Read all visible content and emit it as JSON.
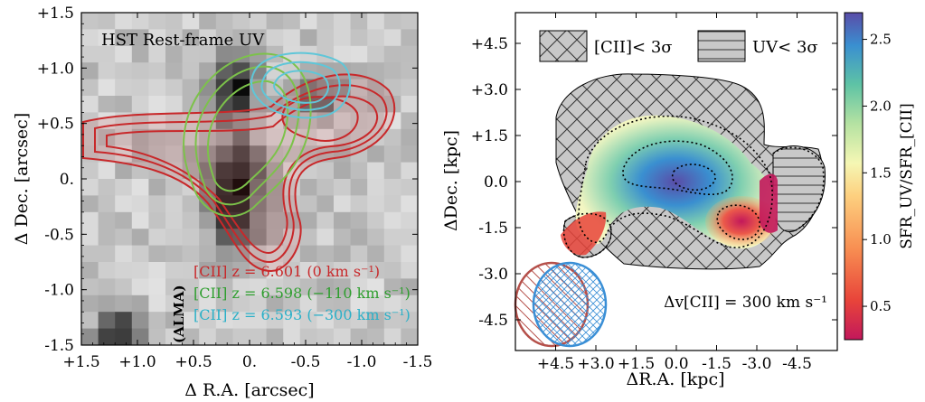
{
  "chart_data": [
    {
      "type": "heatmap",
      "title": "HST Rest-frame UV",
      "xlabel": "Δ R.A. [arcsec]",
      "ylabel": "Δ Dec. [arcsec]",
      "xlim": [
        1.5,
        -1.5
      ],
      "ylim": [
        -1.5,
        1.5
      ],
      "x_ticks": [
        "+1.5",
        "+1.0",
        "+0.5",
        "0.",
        "-0.5",
        "-1.0",
        "-1.5"
      ],
      "x_tick_values": [
        1.5,
        1.0,
        0.5,
        0.0,
        -0.5,
        -1.0,
        -1.5
      ],
      "y_ticks": [
        "-1.5",
        "-1.0",
        "-0.5",
        "0.",
        "+0.5",
        "+1.0",
        "+1.5"
      ],
      "y_tick_values": [
        -1.5,
        -1.0,
        -0.5,
        0.0,
        0.5,
        1.0,
        1.5
      ],
      "inset_label": "(ALMA)",
      "legend": [
        {
          "label": "[CII] z = 6.601 (0 km s⁻¹)",
          "color": "#c8282a"
        },
        {
          "label": "[CII] z = 6.598 (−110 km s⁻¹)",
          "color": "#2e9e2e"
        },
        {
          "label": "[CII] z = 6.593 (−300 km s⁻¹)",
          "color": "#2ab0c8"
        }
      ],
      "contour_series": [
        {
          "color": "#c8282a",
          "center": [
            0.0,
            0.25
          ],
          "levels": 4
        },
        {
          "color": "#7cc24a",
          "center": [
            -0.1,
            0.35
          ],
          "levels": 3
        },
        {
          "color": "#5fc6d8",
          "center": [
            -0.65,
            0.85
          ],
          "levels": 3
        }
      ]
    },
    {
      "type": "heatmap",
      "xlabel": "ΔR.A. [kpc]",
      "ylabel": "ΔDec. [kpc]",
      "xlim": [
        6.0,
        -6.0
      ],
      "ylim": [
        -5.5,
        5.5
      ],
      "x_ticks": [
        "+4.5",
        "+3.0",
        "+1.5",
        "0.0",
        "-1.5",
        "-3.0",
        "-4.5"
      ],
      "x_tick_values": [
        4.5,
        3.0,
        1.5,
        0.0,
        -1.5,
        -3.0,
        -4.5
      ],
      "y_ticks": [
        "-4.5",
        "-3.0",
        "-1.5",
        "0.0",
        "+1.5",
        "+3.0",
        "+4.5"
      ],
      "y_tick_values": [
        -4.5,
        -3.0,
        -1.5,
        0.0,
        1.5,
        3.0,
        4.5
      ],
      "legend": [
        {
          "label": "[CII]< 3σ",
          "pattern": "crosshatch"
        },
        {
          "label": "UV< 3σ",
          "pattern": "horizontal"
        }
      ],
      "annotation": "Δv[CII] = 300 km s⁻¹",
      "colorbar": {
        "label": "SFR_UV/SFR_[CII]",
        "range": [
          0.25,
          2.7
        ],
        "ticks": [
          0.5,
          1.0,
          1.5,
          2.0,
          2.5
        ],
        "tick_labels": [
          "0.5",
          "1.0",
          "1.5",
          "2.0",
          "2.5"
        ]
      }
    }
  ]
}
